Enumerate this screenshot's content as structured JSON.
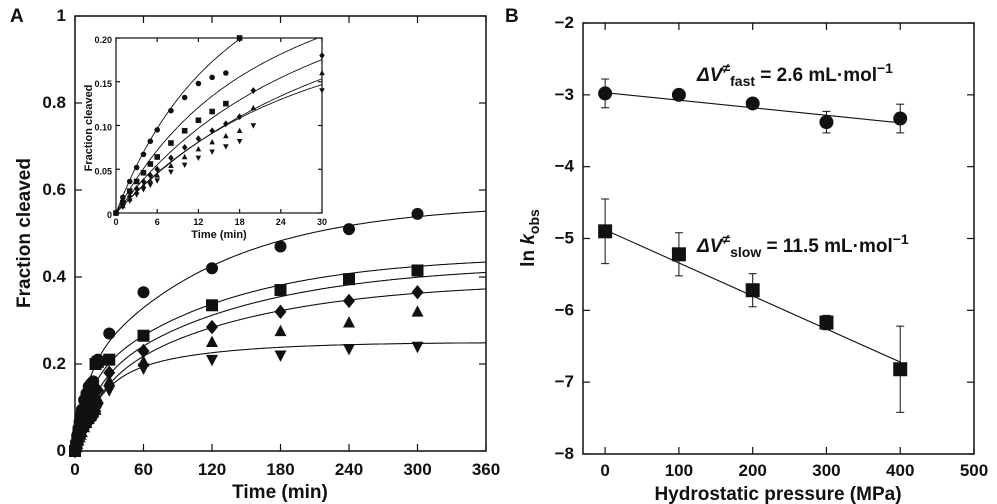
{
  "chart_data": [
    {
      "panel_label": "A",
      "type": "scatter",
      "xlabel": "Time (min)",
      "ylabel": "Fraction cleaved",
      "xlim": [
        0,
        360
      ],
      "ylim": [
        0,
        1
      ],
      "xticks": [
        "0",
        "60",
        "120",
        "180",
        "240",
        "300",
        "360"
      ],
      "yticks": [
        "0",
        "0.2",
        "0.4",
        "0.6",
        "0.8",
        "1"
      ],
      "series": [
        {
          "marker": "circle",
          "x": [
            0,
            1,
            2,
            3,
            4,
            5,
            6,
            8,
            10,
            12,
            14,
            16,
            18,
            20,
            30,
            60,
            120,
            180,
            240,
            300
          ],
          "y": [
            0,
            0.018,
            0.036,
            0.052,
            0.067,
            0.082,
            0.095,
            0.117,
            0.132,
            0.148,
            0.155,
            0.16,
            0.205,
            0.21,
            0.27,
            0.365,
            0.42,
            0.47,
            0.51,
            0.545
          ],
          "fit": {
            "a1": 0.17,
            "k1": 0.1,
            "a2": 0.4,
            "k2": 0.0085
          }
        },
        {
          "marker": "square",
          "x": [
            0,
            1,
            2,
            3,
            4,
            5,
            6,
            8,
            10,
            12,
            14,
            16,
            18,
            20,
            30,
            60,
            120,
            180,
            240,
            300
          ],
          "y": [
            0,
            0.012,
            0.025,
            0.036,
            0.046,
            0.056,
            0.064,
            0.08,
            0.094,
            0.106,
            0.116,
            0.125,
            0.2,
            0.205,
            0.21,
            0.265,
            0.335,
            0.37,
            0.395,
            0.415
          ],
          "fit": {
            "a1": 0.15,
            "k1": 0.08,
            "a2": 0.3,
            "k2": 0.0082
          }
        },
        {
          "marker": "diamond",
          "x": [
            0,
            1,
            2,
            3,
            4,
            5,
            6,
            8,
            10,
            12,
            14,
            16,
            18,
            20,
            30,
            60,
            120,
            180,
            240,
            300
          ],
          "y": [
            0,
            0.01,
            0.019,
            0.028,
            0.036,
            0.043,
            0.05,
            0.063,
            0.075,
            0.085,
            0.094,
            0.102,
            0.11,
            0.14,
            0.18,
            0.23,
            0.285,
            0.32,
            0.345,
            0.365
          ],
          "fit": {
            "a1": 0.14,
            "k1": 0.06,
            "a2": 0.29,
            "k2": 0.0075
          }
        },
        {
          "marker": "triangle",
          "x": [
            0,
            1,
            2,
            3,
            4,
            5,
            6,
            8,
            10,
            12,
            14,
            16,
            18,
            20,
            30,
            60,
            120,
            180,
            240,
            300
          ],
          "y": [
            0,
            0.008,
            0.016,
            0.024,
            0.031,
            0.037,
            0.043,
            0.054,
            0.064,
            0.073,
            0.081,
            0.088,
            0.094,
            0.12,
            0.16,
            0.205,
            0.25,
            0.275,
            0.295,
            0.32
          ],
          "fit": {
            "a1": 0.13,
            "k1": 0.05,
            "a2": 0.26,
            "k2": 0.0075
          }
        },
        {
          "marker": "inverted-triangle",
          "x": [
            0,
            1,
            2,
            3,
            4,
            5,
            6,
            8,
            10,
            12,
            14,
            16,
            18,
            20,
            30,
            60,
            120,
            180,
            240,
            300
          ],
          "y": [
            0,
            0.007,
            0.014,
            0.021,
            0.027,
            0.032,
            0.037,
            0.047,
            0.055,
            0.063,
            0.07,
            0.076,
            0.082,
            0.1,
            0.14,
            0.19,
            0.21,
            0.22,
            0.235,
            0.24
          ],
          "fit": {
            "a1": 0.15,
            "k1": 0.05,
            "a2": 0.1,
            "k2": 0.012
          }
        }
      ]
    },
    {
      "panel_label": "inset",
      "type": "scatter",
      "xlabel": "Time (min)",
      "ylabel": "Fraction cleaved",
      "xlim": [
        0,
        30
      ],
      "ylim": [
        0,
        0.2
      ],
      "xticks": [
        "0",
        "6",
        "12",
        "18",
        "24",
        "30"
      ],
      "yticks": [
        "0",
        "0.05",
        "0.10",
        "0.15",
        "0.20"
      ]
    },
    {
      "panel_label": "B",
      "type": "scatter",
      "xlabel": "Hydrostatic pressure (MPa)",
      "ylabel_prefix": "ln ",
      "ylabel_k": "k",
      "ylabel_sub": "obs",
      "xlim": [
        -30,
        500
      ],
      "ylim": [
        -8,
        -2
      ],
      "xticks": [
        "0",
        "100",
        "200",
        "300",
        "400",
        "500"
      ],
      "yticks": [
        "−2",
        "−3",
        "−4",
        "−5",
        "−6",
        "−7",
        "−8"
      ],
      "series": [
        {
          "name": "fast",
          "marker": "circle",
          "x": [
            0,
            100,
            200,
            300,
            400
          ],
          "y": [
            -2.98,
            -3.0,
            -3.12,
            -3.38,
            -3.33
          ],
          "yerr": [
            0.2,
            0.05,
            0.05,
            0.15,
            0.2
          ],
          "fit": {
            "intercept": -2.97,
            "slope": -0.00105
          }
        },
        {
          "name": "slow",
          "marker": "square",
          "x": [
            0,
            100,
            200,
            300,
            400
          ],
          "y": [
            -4.9,
            -5.22,
            -5.72,
            -6.17,
            -6.82
          ],
          "yerr": [
            0.45,
            0.3,
            0.23,
            0.1,
            0.6
          ],
          "fit": {
            "intercept": -4.88,
            "slope": -0.0046
          }
        }
      ],
      "annotations": {
        "fast": {
          "delta": "ΔV",
          "neq": "≠",
          "sub": "fast",
          "value": " = 2.6 mL·mol",
          "exp": "−1"
        },
        "slow": {
          "delta": "ΔV",
          "neq": "≠",
          "sub": "slow",
          "value": " = 11.5 mL·mol",
          "exp": "−1"
        }
      }
    }
  ]
}
